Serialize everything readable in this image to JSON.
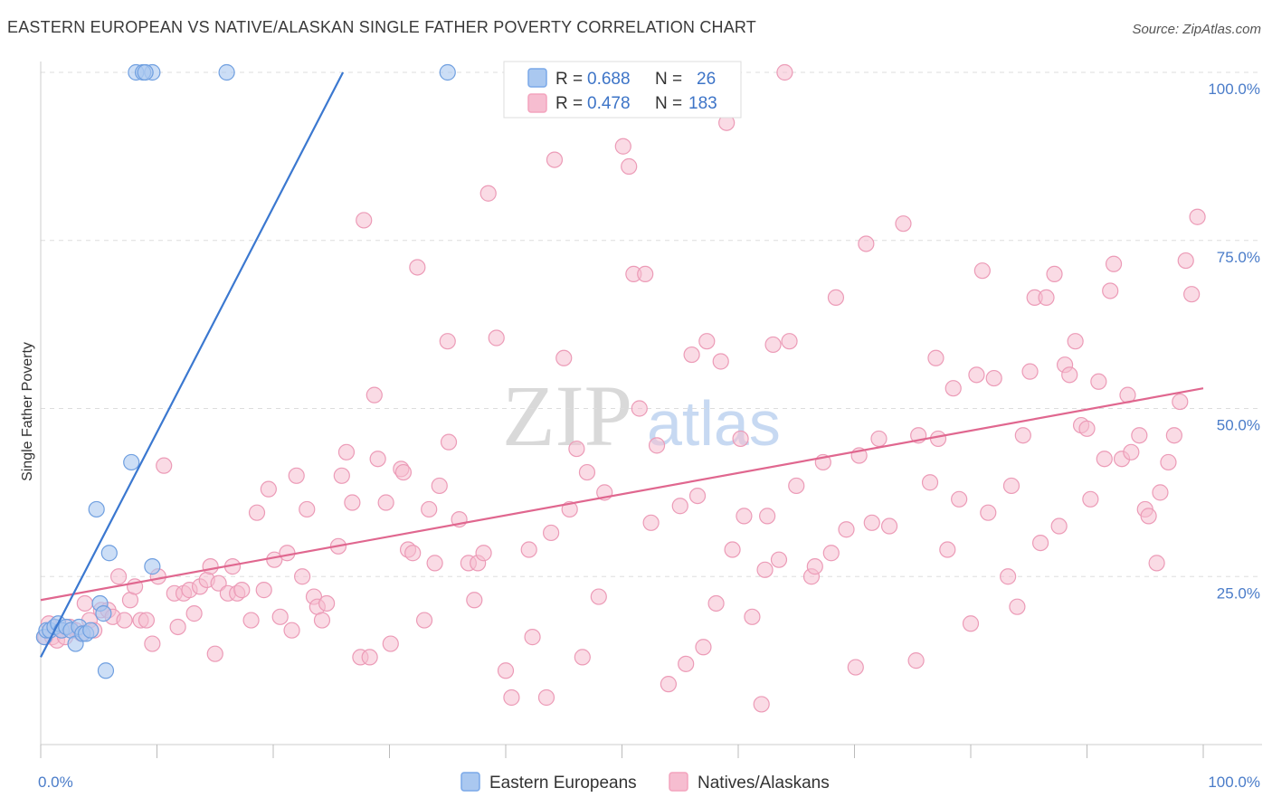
{
  "title": "EASTERN EUROPEAN VS NATIVE/ALASKAN SINGLE FATHER POVERTY CORRELATION CHART",
  "source": "Source: ZipAtlas.com",
  "watermark": {
    "zip": "ZIP",
    "atlas": "atlas"
  },
  "legend_top": [
    {
      "r_label": "R =",
      "r_value": "0.688",
      "n_label": "N =",
      "n_value": "26",
      "color": "#7aa8e8"
    },
    {
      "r_label": "R =",
      "r_value": "0.478",
      "n_label": "N =",
      "n_value": "183",
      "color": "#f3a3bd"
    }
  ],
  "legend_bottom": [
    "Eastern Europeans",
    "Natives/Alaskans"
  ],
  "colors": {
    "blue": "#3b78d0",
    "blue_fill": "#aac8f0",
    "pink": "#e0678f",
    "pink_fill": "#f6bdd0",
    "grid": "#dcdcdc",
    "axis_text": "#4a7cc9"
  },
  "chart_data": {
    "type": "scatter",
    "title": "EASTERN EUROPEAN VS NATIVE/ALASKAN SINGLE FATHER POVERTY CORRELATION CHART",
    "xlabel": "",
    "ylabel": "Single Father Poverty",
    "xlim": [
      0,
      100
    ],
    "ylim": [
      0,
      100
    ],
    "x_tick_labels": [
      "0.0%",
      "100.0%"
    ],
    "y_tick_labels": [
      {
        "v": 25,
        "label": "25.0%"
      },
      {
        "v": 50,
        "label": "50.0%"
      },
      {
        "v": 75,
        "label": "75.0%"
      },
      {
        "v": 100,
        "label": "100.0%"
      }
    ],
    "series": [
      {
        "name": "Eastern Europeans",
        "R": 0.688,
        "N": 26,
        "trend": {
          "x0": 0,
          "y0": 13,
          "x1": 26,
          "y1": 100
        },
        "points": [
          [
            0.3,
            16
          ],
          [
            0.5,
            17
          ],
          [
            0.8,
            17
          ],
          [
            1.2,
            17.5
          ],
          [
            1.5,
            18
          ],
          [
            1.8,
            17
          ],
          [
            2.2,
            17.5
          ],
          [
            2.6,
            17
          ],
          [
            3.0,
            15
          ],
          [
            3.3,
            17.5
          ],
          [
            3.6,
            16.5
          ],
          [
            3.9,
            16.5
          ],
          [
            4.3,
            17
          ],
          [
            4.8,
            35
          ],
          [
            5.1,
            21
          ],
          [
            5.4,
            19.5
          ],
          [
            5.6,
            11
          ],
          [
            5.9,
            28.5
          ],
          [
            7.8,
            42
          ],
          [
            9.6,
            100
          ],
          [
            8.2,
            100
          ],
          [
            8.8,
            100
          ],
          [
            9.0,
            100
          ],
          [
            16.0,
            100
          ],
          [
            35.0,
            100
          ],
          [
            9.6,
            26.5
          ]
        ]
      },
      {
        "name": "Natives/Alaskans",
        "R": 0.478,
        "N": 183,
        "trend": {
          "x0": 0,
          "y0": 21.5,
          "x1": 100,
          "y1": 53
        },
        "points": [
          [
            0.4,
            16
          ],
          [
            0.7,
            18
          ],
          [
            1.0,
            16
          ],
          [
            1.4,
            15.5
          ],
          [
            1.8,
            17
          ],
          [
            2.1,
            16
          ],
          [
            2.5,
            17.5
          ],
          [
            3.0,
            17
          ],
          [
            3.5,
            16.5
          ],
          [
            3.8,
            21
          ],
          [
            4.2,
            18.5
          ],
          [
            4.6,
            17
          ],
          [
            5.2,
            20
          ],
          [
            5.8,
            20
          ],
          [
            6.2,
            19
          ],
          [
            6.7,
            25
          ],
          [
            7.2,
            18.5
          ],
          [
            7.7,
            21.5
          ],
          [
            8.1,
            23.5
          ],
          [
            8.6,
            18.5
          ],
          [
            9.1,
            18.5
          ],
          [
            9.6,
            15
          ],
          [
            10.1,
            25
          ],
          [
            10.6,
            41.5
          ],
          [
            11.5,
            22.5
          ],
          [
            11.8,
            17.5
          ],
          [
            12.3,
            22.5
          ],
          [
            12.8,
            23
          ],
          [
            13.2,
            19.5
          ],
          [
            13.7,
            23.5
          ],
          [
            14.3,
            24.5
          ],
          [
            14.6,
            26.5
          ],
          [
            15.0,
            13.5
          ],
          [
            15.3,
            24
          ],
          [
            16.1,
            22.5
          ],
          [
            16.5,
            26.5
          ],
          [
            16.9,
            22.5
          ],
          [
            17.3,
            23
          ],
          [
            18.1,
            18.5
          ],
          [
            18.6,
            34.5
          ],
          [
            19.2,
            23
          ],
          [
            19.6,
            38
          ],
          [
            20.1,
            27.5
          ],
          [
            20.6,
            19
          ],
          [
            21.2,
            28.5
          ],
          [
            21.6,
            17
          ],
          [
            22.0,
            40
          ],
          [
            22.5,
            25
          ],
          [
            22.9,
            35
          ],
          [
            23.5,
            22
          ],
          [
            23.8,
            20.5
          ],
          [
            24.2,
            18.5
          ],
          [
            24.6,
            21
          ],
          [
            25.6,
            29.5
          ],
          [
            25.9,
            40
          ],
          [
            26.3,
            43.5
          ],
          [
            26.8,
            36
          ],
          [
            27.5,
            13
          ],
          [
            27.8,
            78
          ],
          [
            28.3,
            13
          ],
          [
            28.7,
            52
          ],
          [
            29.0,
            42.5
          ],
          [
            29.7,
            36
          ],
          [
            30.1,
            15
          ],
          [
            31.0,
            41
          ],
          [
            31.2,
            40.5
          ],
          [
            31.6,
            29
          ],
          [
            32.0,
            28.5
          ],
          [
            32.4,
            71
          ],
          [
            33.0,
            18.5
          ],
          [
            33.4,
            35
          ],
          [
            33.9,
            27
          ],
          [
            34.3,
            38.5
          ],
          [
            35.0,
            60
          ],
          [
            35.1,
            45
          ],
          [
            36.0,
            33.5
          ],
          [
            36.8,
            27
          ],
          [
            37.3,
            21.5
          ],
          [
            37.6,
            27
          ],
          [
            38.1,
            28.5
          ],
          [
            38.5,
            82
          ],
          [
            39.2,
            60.5
          ],
          [
            40.0,
            11
          ],
          [
            40.5,
            7
          ],
          [
            42.0,
            29
          ],
          [
            42.3,
            16
          ],
          [
            43.5,
            7
          ],
          [
            43.9,
            31.5
          ],
          [
            44.2,
            87
          ],
          [
            45.0,
            57.5
          ],
          [
            45.5,
            35
          ],
          [
            46.1,
            44
          ],
          [
            46.6,
            13
          ],
          [
            47.0,
            40.5
          ],
          [
            48.0,
            22
          ],
          [
            48.5,
            37.5
          ],
          [
            50.1,
            89
          ],
          [
            50.6,
            86
          ],
          [
            51.0,
            70
          ],
          [
            51.5,
            50
          ],
          [
            52.0,
            70
          ],
          [
            52.5,
            33
          ],
          [
            53.0,
            44.5
          ],
          [
            54.0,
            9
          ],
          [
            55.0,
            35.5
          ],
          [
            55.5,
            12
          ],
          [
            56.0,
            58
          ],
          [
            56.5,
            37
          ],
          [
            57.0,
            14.5
          ],
          [
            57.3,
            60
          ],
          [
            58.1,
            21
          ],
          [
            58.5,
            57
          ],
          [
            59.0,
            92.5
          ],
          [
            59.5,
            29
          ],
          [
            60.2,
            45.5
          ],
          [
            60.5,
            34
          ],
          [
            61.2,
            19
          ],
          [
            62.0,
            6
          ],
          [
            62.3,
            26
          ],
          [
            62.5,
            34
          ],
          [
            63.0,
            59.5
          ],
          [
            63.5,
            27.5
          ],
          [
            64.0,
            100
          ],
          [
            64.4,
            60
          ],
          [
            65.0,
            38.5
          ],
          [
            66.3,
            25
          ],
          [
            66.6,
            26.5
          ],
          [
            67.3,
            42
          ],
          [
            68.0,
            28.5
          ],
          [
            68.4,
            66.5
          ],
          [
            69.3,
            32
          ],
          [
            70.1,
            11.5
          ],
          [
            70.4,
            43
          ],
          [
            71.0,
            74.5
          ],
          [
            71.5,
            33
          ],
          [
            72.1,
            45.5
          ],
          [
            73.0,
            32.5
          ],
          [
            74.2,
            77.5
          ],
          [
            75.3,
            12.5
          ],
          [
            75.5,
            46
          ],
          [
            76.5,
            39
          ],
          [
            77.0,
            57.5
          ],
          [
            77.2,
            45.5
          ],
          [
            78.0,
            29
          ],
          [
            78.5,
            53
          ],
          [
            79.0,
            36.5
          ],
          [
            80.0,
            18
          ],
          [
            80.5,
            55
          ],
          [
            81.0,
            70.5
          ],
          [
            81.5,
            34.5
          ],
          [
            82.0,
            54.5
          ],
          [
            83.2,
            25
          ],
          [
            83.5,
            38.5
          ],
          [
            84.0,
            20.5
          ],
          [
            84.5,
            46
          ],
          [
            85.1,
            55.5
          ],
          [
            85.5,
            66.5
          ],
          [
            86.0,
            30
          ],
          [
            86.5,
            66.5
          ],
          [
            87.2,
            70
          ],
          [
            87.6,
            32.5
          ],
          [
            88.1,
            56.5
          ],
          [
            88.5,
            55
          ],
          [
            89.0,
            60
          ],
          [
            89.5,
            47.5
          ],
          [
            90.0,
            47
          ],
          [
            90.3,
            36.5
          ],
          [
            91.0,
            54
          ],
          [
            91.5,
            42.5
          ],
          [
            92.0,
            67.5
          ],
          [
            92.3,
            71.5
          ],
          [
            93.0,
            42.5
          ],
          [
            93.5,
            52
          ],
          [
            93.8,
            43.5
          ],
          [
            94.5,
            46
          ],
          [
            95.0,
            35
          ],
          [
            95.3,
            34
          ],
          [
            96.0,
            27
          ],
          [
            96.3,
            37.5
          ],
          [
            97.0,
            42
          ],
          [
            97.5,
            46
          ],
          [
            98.0,
            51
          ],
          [
            98.5,
            72
          ],
          [
            99.0,
            67
          ],
          [
            99.5,
            78.5
          ]
        ]
      }
    ]
  }
}
